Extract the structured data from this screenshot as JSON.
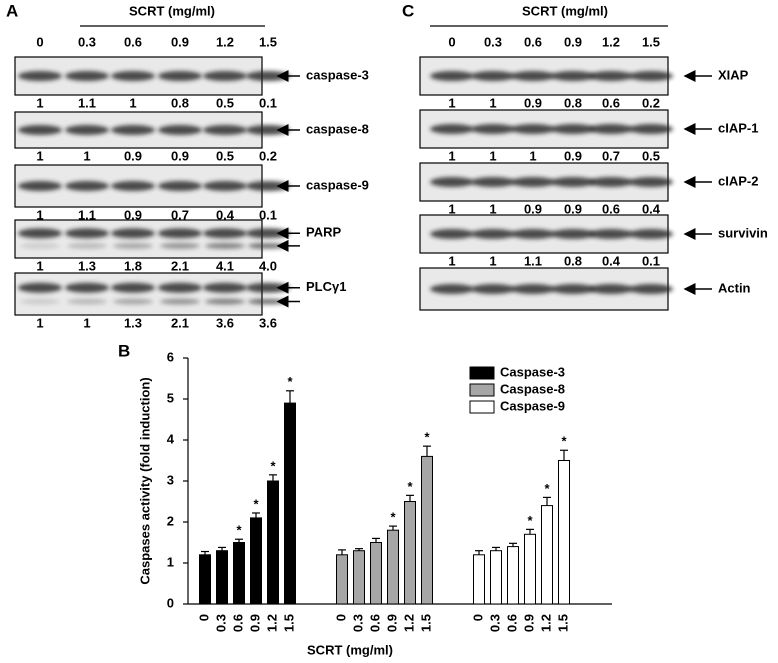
{
  "panel_a": {
    "label": "A",
    "header": "SCRT (mg/ml)",
    "lanes": [
      "0",
      "0.3",
      "0.6",
      "0.9",
      "1.2",
      "1.5"
    ],
    "blots": [
      {
        "labels": [
          "caspase-3"
        ],
        "values": [
          "1",
          "1.1",
          "1",
          "0.8",
          "0.5",
          "0.1"
        ]
      },
      {
        "labels": [
          "caspase-8"
        ],
        "values": [
          "1",
          "1",
          "0.9",
          "0.9",
          "0.5",
          "0.2"
        ]
      },
      {
        "labels": [
          "caspase-9"
        ],
        "values": [
          "1",
          "1.1",
          "0.9",
          "0.7",
          "0.4",
          "0.1"
        ]
      },
      {
        "labels": [
          "PARP"
        ],
        "values": [
          "1",
          "1.3",
          "1.8",
          "2.1",
          "4.1",
          "4.0"
        ]
      },
      {
        "labels": [
          "PLCγ1"
        ],
        "values": [
          "1",
          "1",
          "1.3",
          "2.1",
          "3.6",
          "3.6"
        ]
      }
    ]
  },
  "panel_c": {
    "label": "C",
    "header": "SCRT (mg/ml)",
    "lanes": [
      "0",
      "0.3",
      "0.6",
      "0.9",
      "1.2",
      "1.5"
    ],
    "blots": [
      {
        "labels": [
          "XIAP"
        ],
        "values": [
          "1",
          "1",
          "0.9",
          "0.8",
          "0.6",
          "0.2"
        ]
      },
      {
        "labels": [
          "cIAP-1"
        ],
        "values": [
          "1",
          "1",
          "1",
          "0.9",
          "0.7",
          "0.5"
        ]
      },
      {
        "labels": [
          "cIAP-2"
        ],
        "values": [
          "1",
          "1",
          "0.9",
          "0.9",
          "0.6",
          "0.4"
        ]
      },
      {
        "labels": [
          "survivin"
        ],
        "values": [
          "1",
          "1",
          "1.1",
          "0.8",
          "0.4",
          "0.1"
        ]
      },
      {
        "labels": [
          "Actin"
        ]
      }
    ]
  },
  "chart_data": {
    "type": "bar",
    "panel_label": "B",
    "ylabel": "Caspases activity (fold induction)",
    "xlabel": "SCRT (mg/ml)",
    "categories": [
      "0",
      "0.3",
      "0.6",
      "0.9",
      "1.2",
      "1.5"
    ],
    "ylim": [
      0,
      6
    ],
    "yticks": [
      0,
      1,
      2,
      3,
      4,
      5,
      6
    ],
    "legend": "upper right",
    "series": [
      {
        "name": "Caspase-3",
        "color": "#000000",
        "values": [
          1.2,
          1.3,
          1.5,
          2.1,
          3.0,
          4.9
        ],
        "errors": [
          0.08,
          0.08,
          0.08,
          0.12,
          0.15,
          0.3
        ],
        "annotations": [
          null,
          null,
          "*",
          "*",
          "*",
          "*"
        ]
      },
      {
        "name": "Caspase-8",
        "color": "#a6a6a6",
        "values": [
          1.2,
          1.3,
          1.5,
          1.8,
          2.5,
          3.6
        ],
        "errors": [
          0.12,
          0.05,
          0.1,
          0.1,
          0.15,
          0.25
        ],
        "annotations": [
          null,
          null,
          null,
          "*",
          "*",
          "*"
        ]
      },
      {
        "name": "Caspase-9",
        "color": "#ffffff",
        "values": [
          1.2,
          1.3,
          1.4,
          1.7,
          2.4,
          3.5
        ],
        "errors": [
          0.1,
          0.08,
          0.08,
          0.12,
          0.2,
          0.25
        ],
        "annotations": [
          null,
          null,
          null,
          "*",
          "*",
          "*"
        ]
      }
    ]
  }
}
